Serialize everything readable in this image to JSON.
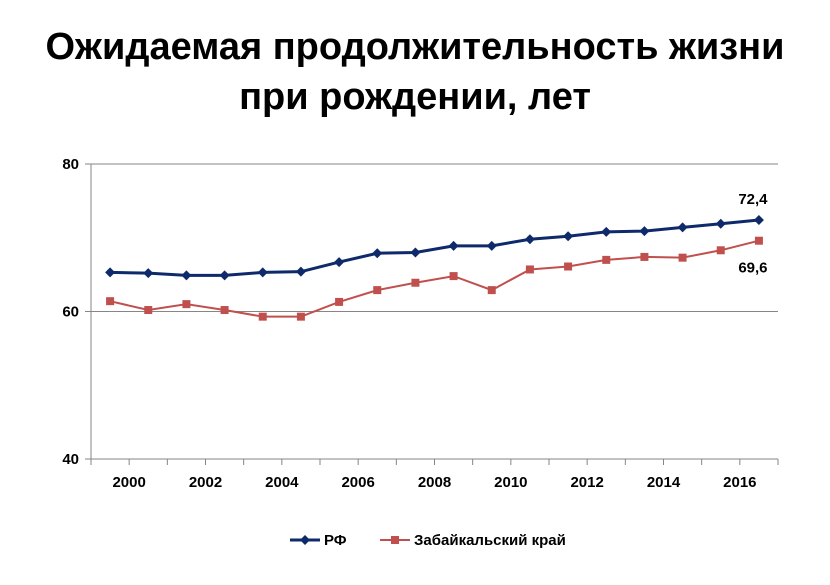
{
  "chart_data": {
    "type": "line",
    "title_line1": "Ожидаемая продолжительность жизни",
    "title_line2": "при рождении, лет",
    "x": [
      2000,
      2001,
      2002,
      2003,
      2004,
      2005,
      2006,
      2007,
      2008,
      2009,
      2010,
      2011,
      2012,
      2013,
      2014,
      2015,
      2016,
      2017
    ],
    "x_tick_labels": [
      "2000",
      "2002",
      "2004",
      "2006",
      "2008",
      "2010",
      "2012",
      "2014",
      "2016"
    ],
    "y_tick_labels": [
      "40",
      "60",
      "80"
    ],
    "ylim": [
      40,
      80
    ],
    "grid": "horizontal",
    "legend_position": "bottom",
    "series": [
      {
        "name": "РФ",
        "color": "#0f2a6b",
        "marker": "diamond",
        "values": [
          65.3,
          65.2,
          64.9,
          64.9,
          65.3,
          65.4,
          66.7,
          67.9,
          68.0,
          68.9,
          68.9,
          69.8,
          70.2,
          70.8,
          70.9,
          71.4,
          71.9,
          72.4
        ],
        "end_label": "72,4"
      },
      {
        "name": "Забайкальский край",
        "color": "#c0504d",
        "marker": "square",
        "values": [
          61.4,
          60.2,
          61.0,
          60.2,
          59.3,
          59.3,
          61.3,
          62.9,
          63.9,
          64.8,
          62.9,
          65.7,
          66.1,
          67.0,
          67.4,
          67.3,
          68.3,
          69.6
        ],
        "end_label": "69,6"
      }
    ]
  }
}
